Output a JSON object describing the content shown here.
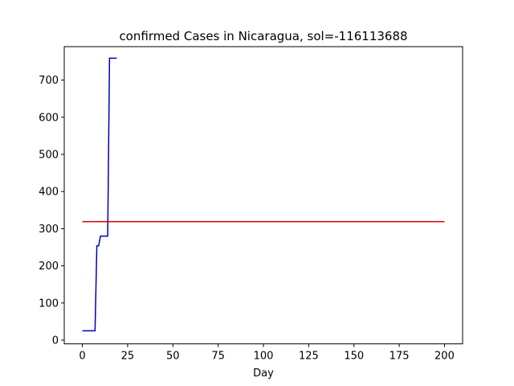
{
  "chart_data": {
    "type": "line",
    "title": "confirmed Cases in Nicaragua, sol=-116113688",
    "xlabel": "Day",
    "ylabel": "",
    "xlim": [
      -10,
      210
    ],
    "ylim": [
      -10,
      790
    ],
    "xticks": [
      0,
      25,
      50,
      75,
      100,
      125,
      150,
      175,
      200
    ],
    "yticks": [
      0,
      100,
      200,
      300,
      400,
      500,
      600,
      700
    ],
    "grid": false,
    "series": [
      {
        "color": "#0000bb",
        "x": [
          0,
          1,
          2,
          3,
          4,
          5,
          6,
          7,
          8,
          9,
          10,
          11,
          12,
          13,
          14,
          15,
          16,
          17,
          18,
          19
        ],
        "y": [
          25,
          25,
          25,
          25,
          25,
          25,
          25,
          25,
          254,
          254,
          280,
          280,
          280,
          280,
          280,
          759,
          759,
          759,
          759,
          759
        ]
      },
      {
        "color": "#cc0000",
        "x": [
          0,
          200
        ],
        "y": [
          319,
          319
        ]
      }
    ]
  }
}
